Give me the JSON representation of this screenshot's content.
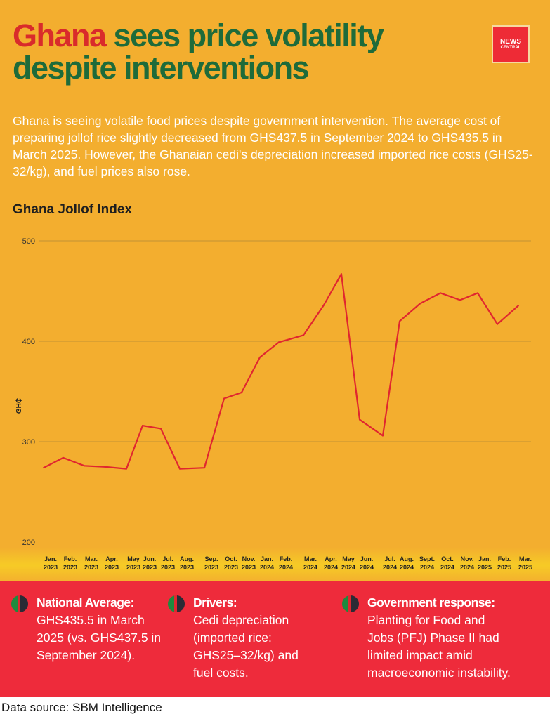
{
  "header": {
    "title_highlight": "Ghana",
    "title_rest": " sees price volatility despite interventions",
    "logo_line1": "NEWS",
    "logo_line2": "CENTRAL"
  },
  "intro": "Ghana is seeing volatile food prices despite government intervention. The average cost of preparing jollof rice slightly decreased from GHS437.5 in September 2024 to GHS435.5 in March 2025. However, the Ghanaian cedi's depreciation increased imported rice costs (GHS25-32/kg), and fuel prices also rose.",
  "chart_data": {
    "type": "line",
    "title": "Ghana Jollof Index",
    "ylabel": "GH₵",
    "xlabel": "",
    "ylim": [
      200,
      500
    ],
    "yticks": [
      "200",
      "300",
      "400",
      "500"
    ],
    "grid": true,
    "categories": [
      [
        "Jan.",
        "2023"
      ],
      [
        "Feb.",
        "2023"
      ],
      [
        "Mar.",
        "2023"
      ],
      [
        "Apr.",
        "2023"
      ],
      [
        "May",
        "2023"
      ],
      [
        "Jun.",
        "2023"
      ],
      [
        "Jul.",
        "2023"
      ],
      [
        "Aug.",
        "2023"
      ],
      [
        "Sep.",
        "2023"
      ],
      [
        "Oct.",
        "2023"
      ],
      [
        "Nov.",
        "2023"
      ],
      [
        "Jan.",
        "2024"
      ],
      [
        "Feb.",
        "2024"
      ],
      [
        "Mar.",
        "2024"
      ],
      [
        "Apr.",
        "2024"
      ],
      [
        "May",
        "2024"
      ],
      [
        "Jun.",
        "2024"
      ],
      [
        "Jul.",
        "2024"
      ],
      [
        "Aug.",
        "2024"
      ],
      [
        "Sept.",
        "2024"
      ],
      [
        "Oct.",
        "2024"
      ],
      [
        "Nov.",
        "2024"
      ],
      [
        "Jan.",
        "2025"
      ],
      [
        "Feb.",
        "2025"
      ],
      [
        "Mar.",
        "2025"
      ]
    ],
    "values": [
      274,
      284,
      276,
      275,
      273,
      316,
      313,
      273,
      274,
      343,
      349,
      384,
      399,
      406,
      436,
      467,
      322,
      306,
      420,
      437.5,
      448,
      441,
      448,
      417,
      435.5
    ],
    "line_color": "#E0262F"
  },
  "panel": [
    {
      "heading": "National Average:",
      "lines": [
        "GHS435.5 in March",
        "2025 (vs. GHS437.5 in",
        "September 2024)."
      ]
    },
    {
      "heading": "Drivers:",
      "lines": [
        "Cedi depreciation",
        "(imported rice:",
        "GHS25–32/kg) and",
        "fuel costs."
      ]
    },
    {
      "heading": "Government response:",
      "lines": [
        "Planting for Food and",
        "Jobs (PFJ) Phase II had",
        "limited impact amid",
        "macroeconomic instability."
      ]
    }
  ],
  "footer": "Data source: SBM Intelligence",
  "colors": {
    "background": "#F3AE2F",
    "panel": "#EE2B3B",
    "title_green": "#1E6B3A",
    "title_red": "#D92B2B"
  }
}
